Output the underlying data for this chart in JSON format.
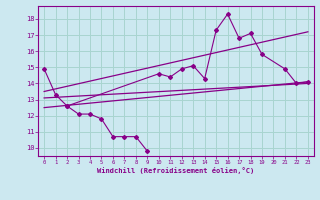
{
  "xlabel": "Windchill (Refroidissement éolien,°C)",
  "bg_color": "#cce8f0",
  "grid_color": "#a8d4d0",
  "line_color": "#880088",
  "xlim": [
    -0.5,
    23.5
  ],
  "ylim": [
    9.5,
    18.8
  ],
  "yticks": [
    10,
    11,
    12,
    13,
    14,
    15,
    16,
    17,
    18
  ],
  "xticks": [
    0,
    1,
    2,
    3,
    4,
    5,
    6,
    7,
    8,
    9,
    10,
    11,
    12,
    13,
    14,
    15,
    16,
    17,
    18,
    19,
    20,
    21,
    22,
    23
  ],
  "series1_x": [
    0,
    1,
    2,
    3,
    4,
    5,
    6,
    7,
    8,
    9
  ],
  "series1_y": [
    14.9,
    13.3,
    12.6,
    12.1,
    12.1,
    11.8,
    10.7,
    10.7,
    10.7,
    9.8
  ],
  "series2_x": [
    2,
    10,
    11,
    12,
    13,
    14,
    15,
    16,
    17,
    18,
    19,
    21,
    22,
    23
  ],
  "series2_y": [
    12.6,
    14.6,
    14.4,
    14.9,
    15.1,
    14.3,
    17.3,
    18.3,
    16.8,
    17.1,
    15.8,
    14.9,
    14.0,
    14.1
  ],
  "trend1_x": [
    0,
    23
  ],
  "trend1_y": [
    13.1,
    14.0
  ],
  "trend2_x": [
    0,
    23
  ],
  "trend2_y": [
    12.5,
    14.1
  ],
  "trend3_x": [
    0,
    23
  ],
  "trend3_y": [
    13.5,
    17.2
  ]
}
